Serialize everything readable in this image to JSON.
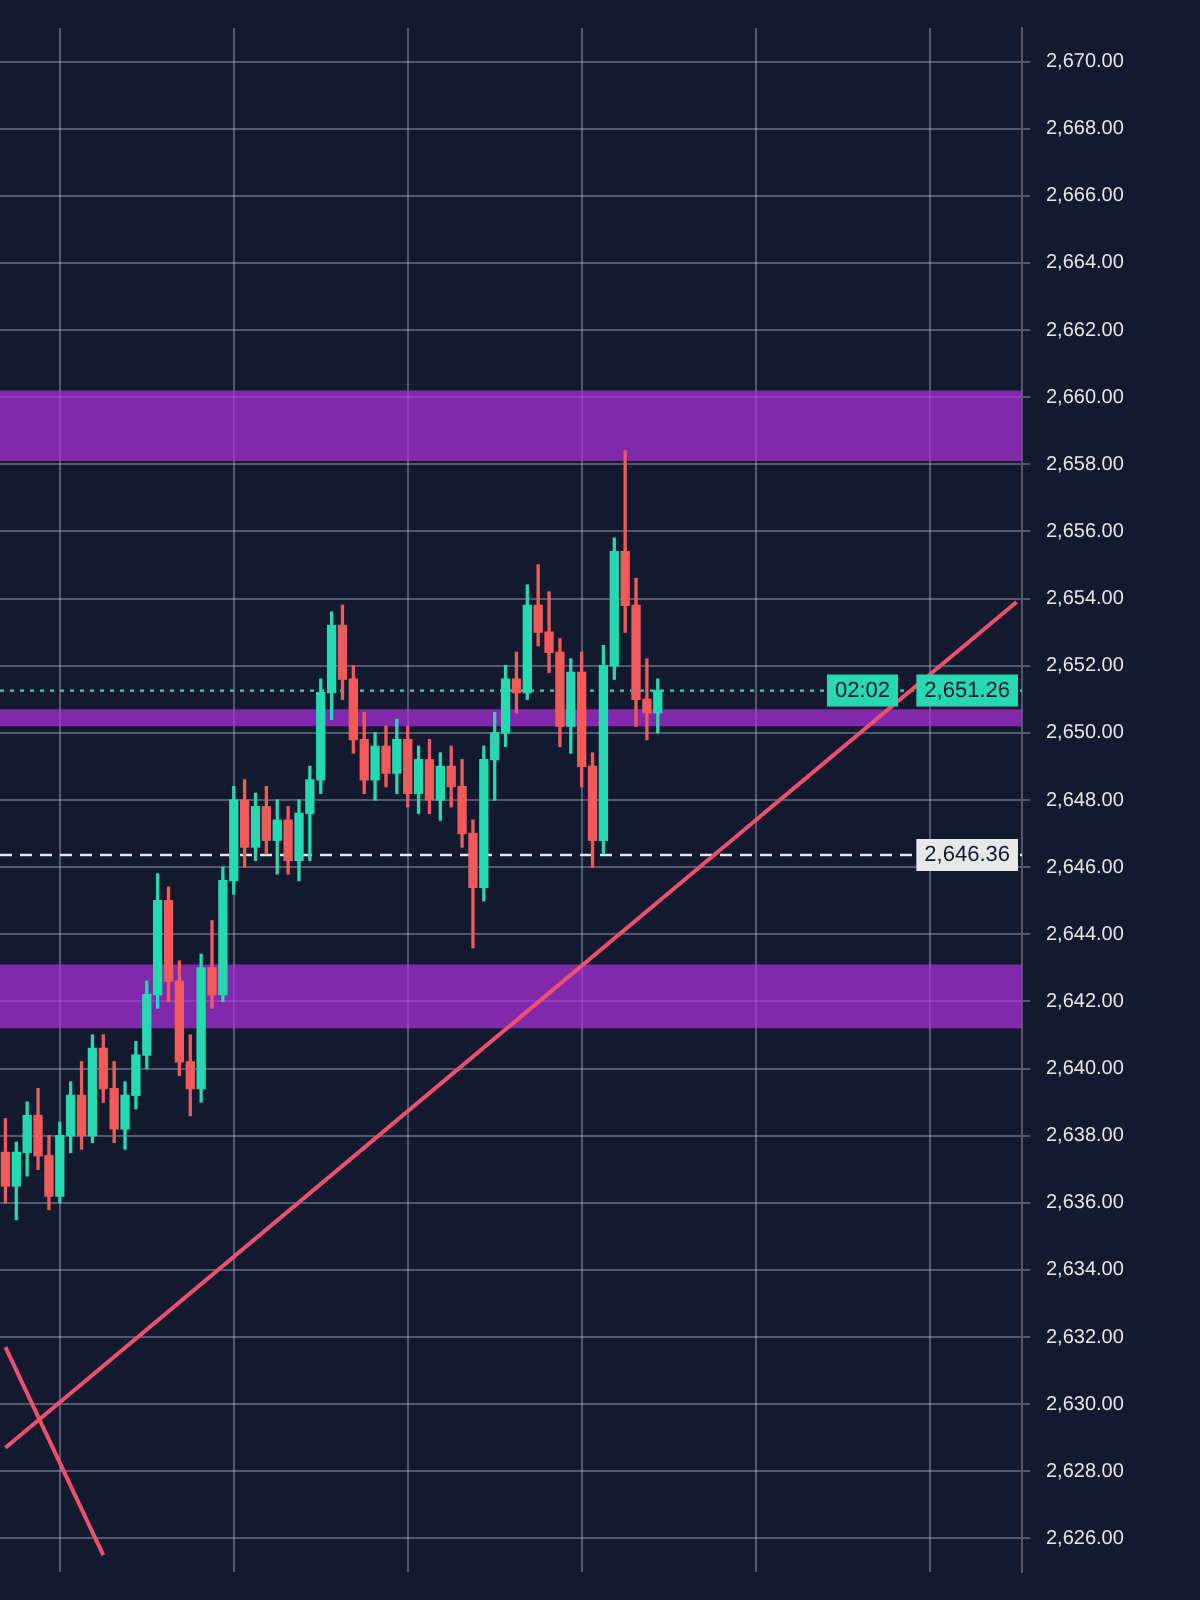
{
  "chart_data": {
    "type": "candlestick",
    "categories": [
      null,
      null,
      null,
      null,
      null,
      null,
      null,
      null,
      null,
      null,
      null,
      null,
      null,
      null,
      null,
      null,
      null,
      null,
      null,
      null,
      null,
      null,
      null,
      null,
      null,
      null,
      null,
      null,
      null,
      null,
      null,
      null,
      null,
      null,
      null,
      null,
      null,
      null,
      null,
      null,
      null,
      null,
      null,
      null,
      null,
      null,
      null,
      null,
      null,
      null,
      null,
      null,
      null,
      null,
      null,
      null,
      null,
      null,
      null,
      null,
      null,
      null,
      null,
      null,
      null,
      null,
      null,
      null,
      null,
      null,
      null,
      null,
      null,
      null,
      null,
      null,
      null,
      null,
      null,
      null,
      null,
      null,
      null,
      null,
      null,
      null,
      null,
      null,
      null,
      null,
      null,
      null,
      null,
      null
    ],
    "ohlc": [
      [
        2637.5,
        2638.5,
        2636,
        2636.5
      ],
      [
        2636.5,
        2637.8,
        2635.5,
        2637.5
      ],
      [
        2637.5,
        2639,
        2636.8,
        2638.6
      ],
      [
        2638.6,
        2639.4,
        2637,
        2637.4
      ],
      [
        2637.4,
        2638,
        2635.8,
        2636.2
      ],
      [
        2636.2,
        2638.4,
        2636,
        2638
      ],
      [
        2638,
        2639.6,
        2637.5,
        2639.2
      ],
      [
        2639.2,
        2640.2,
        2637.6,
        2638
      ],
      [
        2638,
        2641,
        2637.8,
        2640.6
      ],
      [
        2640.6,
        2641,
        2639,
        2639.4
      ],
      [
        2639.4,
        2640.2,
        2637.8,
        2638.2
      ],
      [
        2638.2,
        2639.6,
        2637.6,
        2639.2
      ],
      [
        2639.2,
        2640.8,
        2638.8,
        2640.4
      ],
      [
        2640.4,
        2642.6,
        2640,
        2642.2
      ],
      [
        2642.2,
        2645.8,
        2641.8,
        2645
      ],
      [
        2645,
        2645.4,
        2642,
        2642.6
      ],
      [
        2642.6,
        2643.2,
        2639.8,
        2640.2
      ],
      [
        2640.2,
        2641,
        2638.6,
        2639.4
      ],
      [
        2639.4,
        2643.4,
        2639,
        2643
      ],
      [
        2643,
        2644.4,
        2641.8,
        2642.2
      ],
      [
        2642.2,
        2646,
        2642,
        2645.6
      ],
      [
        2645.6,
        2648.4,
        2645.2,
        2648
      ],
      [
        2648,
        2648.6,
        2646,
        2646.6
      ],
      [
        2646.6,
        2648.2,
        2646.2,
        2647.8
      ],
      [
        2647.8,
        2648.4,
        2646.4,
        2646.8
      ],
      [
        2646.8,
        2648,
        2645.8,
        2647.4
      ],
      [
        2647.4,
        2647.8,
        2645.8,
        2646.2
      ],
      [
        2646.2,
        2648,
        2645.6,
        2647.6
      ],
      [
        2647.6,
        2649,
        2646.2,
        2648.6
      ],
      [
        2648.6,
        2651.6,
        2648.2,
        2651.2
      ],
      [
        2651.2,
        2653.6,
        2650.4,
        2653.2
      ],
      [
        2653.2,
        2653.8,
        2651,
        2651.6
      ],
      [
        2651.6,
        2652,
        2649.4,
        2649.8
      ],
      [
        2649.8,
        2650.6,
        2648.2,
        2648.6
      ],
      [
        2648.6,
        2650,
        2648,
        2649.6
      ],
      [
        2649.6,
        2650.2,
        2648.4,
        2648.8
      ],
      [
        2648.8,
        2650.4,
        2648.2,
        2649.8
      ],
      [
        2649.8,
        2650.2,
        2647.8,
        2648.2
      ],
      [
        2648.2,
        2649.6,
        2647.6,
        2649.2
      ],
      [
        2649.2,
        2649.8,
        2647.6,
        2648
      ],
      [
        2648,
        2649.4,
        2647.4,
        2649
      ],
      [
        2649,
        2649.6,
        2647.8,
        2648.4
      ],
      [
        2648.4,
        2649.2,
        2646.6,
        2647
      ],
      [
        2647,
        2647.4,
        2643.6,
        2645.4
      ],
      [
        2645.4,
        2649.6,
        2645,
        2649.2
      ],
      [
        2649.2,
        2650.6,
        2648,
        2650
      ],
      [
        2650,
        2652,
        2649.6,
        2651.6
      ],
      [
        2651.6,
        2652.4,
        2650.6,
        2651.2
      ],
      [
        2651.2,
        2654.4,
        2651,
        2653.8
      ],
      [
        2653.8,
        2655,
        2652.6,
        2653
      ],
      [
        2653,
        2654.2,
        2651.8,
        2652.4
      ],
      [
        2652.4,
        2652.8,
        2649.6,
        2650.2
      ],
      [
        2650.2,
        2652.2,
        2649.4,
        2651.8
      ],
      [
        2651.8,
        2652.4,
        2648.4,
        2649
      ],
      [
        2649,
        2649.4,
        2646,
        2646.8
      ],
      [
        2646.8,
        2652.6,
        2646.4,
        2652
      ],
      [
        2652,
        2655.8,
        2651.6,
        2655.4
      ],
      [
        2655.4,
        2658.4,
        2653,
        2653.8
      ],
      [
        2653.8,
        2654.6,
        2650.2,
        2651
      ],
      [
        2651,
        2652.2,
        2649.8,
        2650.6
      ],
      [
        2650.6,
        2651.6,
        2650,
        2651.26
      ],
      null,
      null,
      null,
      null,
      null,
      null,
      null,
      null,
      null,
      null,
      null,
      null,
      null,
      null,
      null,
      null,
      null,
      null,
      null,
      null,
      null,
      null,
      null,
      null,
      null,
      null,
      null,
      null,
      null,
      null,
      null,
      null,
      null
    ],
    "colors": [
      "#f05a5a",
      "#26d9b0",
      "#26d9b0",
      "#f05a5a",
      "#f05a5a",
      "#26d9b0",
      "#26d9b0",
      "#f05a5a",
      "#26d9b0",
      "#f05a5a",
      "#f05a5a",
      "#26d9b0",
      "#26d9b0",
      "#26d9b0",
      "#26d9b0",
      "#f05a5a",
      "#f05a5a",
      "#f05a5a",
      "#26d9b0",
      "#f05a5a",
      "#26d9b0",
      "#26d9b0",
      "#f05a5a",
      "#26d9b0",
      "#f05a5a",
      "#26d9b0",
      "#f05a5a",
      "#26d9b0",
      "#26d9b0",
      "#26d9b0",
      "#26d9b0",
      "#f05a5a",
      "#f05a5a",
      "#f05a5a",
      "#26d9b0",
      "#f05a5a",
      "#26d9b0",
      "#f05a5a",
      "#26d9b0",
      "#f05a5a",
      "#26d9b0",
      "#f05a5a",
      "#f05a5a",
      "#f05a5a",
      "#26d9b0",
      "#26d9b0",
      "#26d9b0",
      "#f05a5a",
      "#26d9b0",
      "#f05a5a",
      "#f05a5a",
      "#f05a5a",
      "#26d9b0",
      "#f05a5a",
      "#f05a5a",
      "#26d9b0",
      "#26d9b0",
      "#f05a5a",
      "#f05a5a",
      "#f05a5a",
      "#26d9b0",
      null,
      null,
      null,
      null,
      null,
      null,
      null,
      null,
      null,
      null,
      null,
      null,
      null,
      null,
      null,
      null,
      null,
      null,
      null,
      null,
      null,
      null,
      null,
      null,
      null,
      null,
      null,
      null,
      null,
      null,
      null,
      null,
      null
    ],
    "series": [
      {
        "type": "line",
        "values": [
          2628.7,
          null,
          null,
          null,
          null,
          null,
          null,
          null,
          null,
          null,
          null,
          null,
          null,
          null,
          null,
          null,
          null,
          null,
          null,
          null,
          null,
          null,
          null,
          null,
          null,
          null,
          null,
          null,
          null,
          null,
          null,
          null,
          null,
          null,
          null,
          null,
          null,
          null,
          null,
          null,
          null,
          null,
          null,
          null,
          null,
          null,
          null,
          null,
          null,
          null,
          null,
          null,
          null,
          null,
          null,
          null,
          null,
          null,
          null,
          null,
          null,
          null,
          null,
          null,
          null,
          null,
          null,
          null,
          null,
          null,
          null,
          null,
          null,
          null,
          null,
          null,
          null,
          null,
          null,
          null,
          null,
          null,
          null,
          null,
          null,
          null,
          null,
          null,
          null,
          null,
          null,
          null,
          null,
          2653.9
        ],
        "color": "#f0506e"
      },
      {
        "type": "line",
        "values": [
          2631.7,
          null,
          null,
          null,
          null,
          null,
          null,
          null,
          null,
          2625.5,
          null,
          null,
          null,
          null,
          null,
          null,
          null,
          null,
          null,
          null,
          null,
          null,
          null,
          null,
          null,
          null,
          null,
          null,
          null,
          null,
          null,
          null,
          null,
          null,
          null,
          null,
          null,
          null,
          null,
          null,
          null,
          null,
          null,
          null,
          null,
          null,
          null,
          null,
          null,
          null,
          null,
          null,
          null,
          null,
          null,
          null,
          null,
          null,
          null,
          null,
          null,
          null,
          null,
          null,
          null,
          null,
          null,
          null,
          null,
          null,
          null,
          null,
          null,
          null,
          null,
          null,
          null,
          null,
          null,
          null,
          null,
          null,
          null,
          null,
          null,
          null,
          null,
          null,
          null,
          null,
          null,
          null,
          null,
          null
        ],
        "color": "#f0506e"
      }
    ],
    "bands": [
      {
        "axis": "y",
        "from": 2658.1,
        "to": 2660.2,
        "color": "#b030e0"
      },
      {
        "axis": "y",
        "from": 2641.2,
        "to": 2643.1,
        "color": "#b030e0"
      },
      {
        "axis": "y",
        "from": 2650.2,
        "to": 2650.7,
        "color": "#b030e0"
      }
    ],
    "ref_lines": [
      {
        "axis": "y",
        "value": 2651.26,
        "label": "2,651.26",
        "color": "#26d9b0",
        "line_style": "dotted"
      },
      {
        "axis": "y",
        "value": 2646.36,
        "label": "2,646.36",
        "color": "#e8e8e8",
        "line_style": "dashed"
      }
    ],
    "annotations": [
      {
        "text": "02:02",
        "y": 2651.26
      }
    ],
    "ylim": [
      2625,
      2671
    ],
    "yticks": [
      {
        "value": 2626,
        "label": "2,626.00"
      },
      {
        "value": 2628,
        "label": "2,628.00"
      },
      {
        "value": 2630,
        "label": "2,630.00"
      },
      {
        "value": 2632,
        "label": "2,632.00"
      },
      {
        "value": 2634,
        "label": "2,634.00"
      },
      {
        "value": 2636,
        "label": "2,636.00"
      },
      {
        "value": 2638,
        "label": "2,638.00"
      },
      {
        "value": 2640,
        "label": "2,640.00"
      },
      {
        "value": 2642,
        "label": "2,642.00"
      },
      {
        "value": 2644,
        "label": "2,644.00"
      },
      {
        "value": 2646,
        "label": "2,646.00"
      },
      {
        "value": 2648,
        "label": "2,648.00"
      },
      {
        "value": 2650,
        "label": "2,650.00"
      },
      {
        "value": 2652,
        "label": "2,652.00"
      },
      {
        "value": 2654,
        "label": "2,654.00"
      },
      {
        "value": 2656,
        "label": "2,656.00"
      },
      {
        "value": 2658,
        "label": "2,658.00"
      },
      {
        "value": 2660,
        "label": "2,660.00"
      },
      {
        "value": 2662,
        "label": "2,662.00"
      },
      {
        "value": 2664,
        "label": "2,664.00"
      },
      {
        "value": 2666,
        "label": "2,666.00"
      },
      {
        "value": 2668,
        "label": "2,668.00"
      },
      {
        "value": 2670,
        "label": "2,670.00"
      }
    ],
    "grid": true,
    "tick_labels": "y",
    "legend": false
  }
}
